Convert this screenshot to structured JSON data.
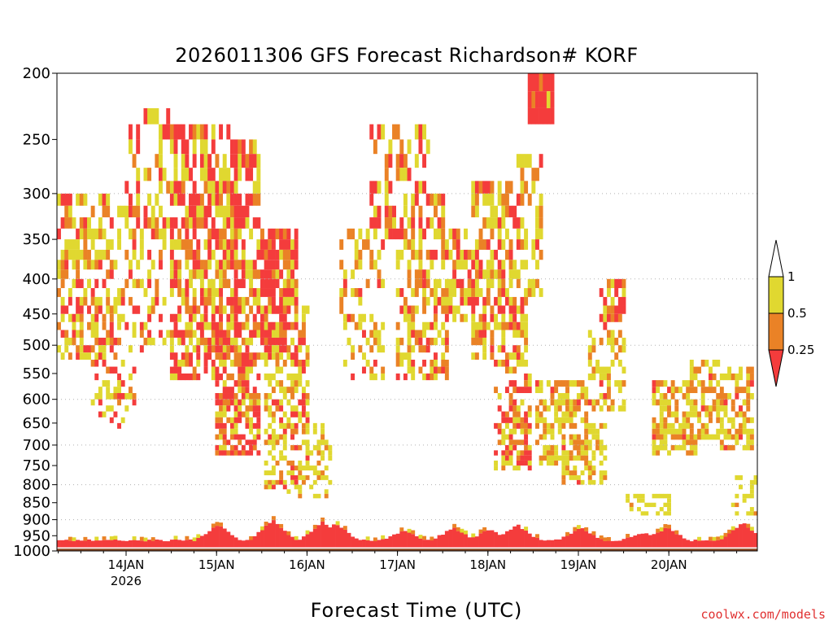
{
  "chart_data": {
    "type": "heatmap",
    "title": "2026011306 GFS Forecast Richardson# KORF",
    "xlabel": "Forecast Time (UTC)",
    "ylabel": "",
    "y_scale": "log-pressure (hPa), inverted",
    "ylim": [
      1000,
      200
    ],
    "y_ticks": [
      200,
      250,
      300,
      350,
      400,
      450,
      500,
      550,
      600,
      650,
      700,
      750,
      800,
      850,
      900,
      950,
      1000
    ],
    "x_ticks": [
      {
        "label": "14JAN",
        "sub": "2026"
      },
      {
        "label": "15JAN",
        "sub": ""
      },
      {
        "label": "16JAN",
        "sub": ""
      },
      {
        "label": "17JAN",
        "sub": ""
      },
      {
        "label": "18JAN",
        "sub": ""
      },
      {
        "label": "19JAN",
        "sub": ""
      },
      {
        "label": "20JAN",
        "sub": ""
      }
    ],
    "x_range": [
      "13JAN 06Z",
      "20JAN 18Z"
    ],
    "grid": "dotted horizontal at 300, 400, 500, 600, 700, 800, 900",
    "legend": {
      "placement": "right",
      "levels": [
        {
          "label": "1",
          "color": "#ffffff"
        },
        {
          "label": "0.5",
          "color": "#e0d830"
        },
        {
          "label": "0.25",
          "color": "#ea8226"
        },
        {
          "label": "",
          "color": "#f43c3c"
        }
      ]
    },
    "colors": {
      "lt_0_25": "#f43c3c",
      "0_25_to_0_5": "#ea8226",
      "0_5_to_1": "#e0d830",
      "gt_1": "#ffffff",
      "ground": "#8b4a26"
    }
  },
  "credit": "coolwx.com/models"
}
